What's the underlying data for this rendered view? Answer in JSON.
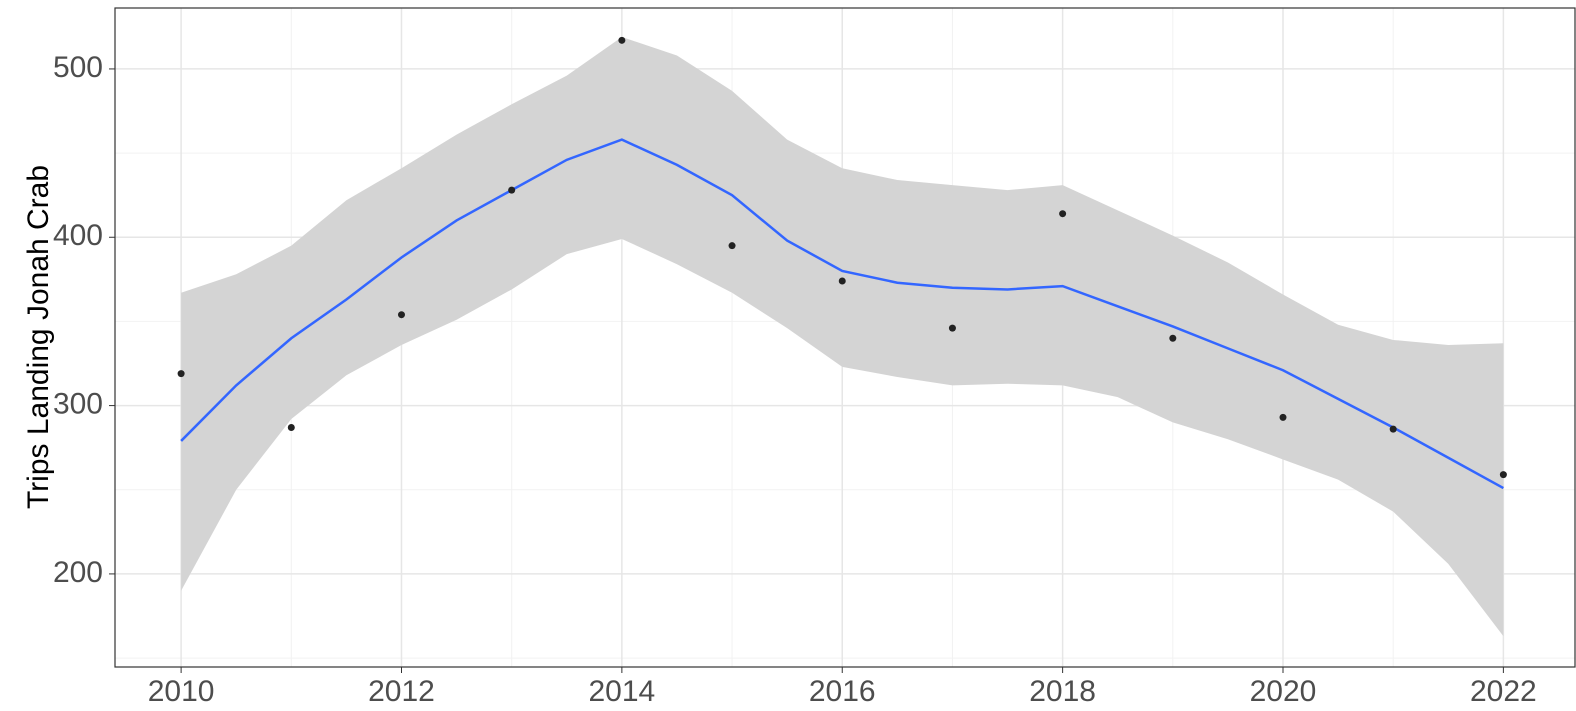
{
  "chart_data": {
    "type": "scatter",
    "y_label": "Trips Landing Jonah Crab",
    "x": [
      2010,
      2011,
      2012,
      2013,
      2014,
      2015,
      2016,
      2017,
      2018,
      2019,
      2020,
      2021,
      2022
    ],
    "values": [
      319,
      287,
      354,
      428,
      517,
      395,
      374,
      346,
      414,
      340,
      293,
      286,
      259
    ],
    "color": "#222222",
    "smooth": {
      "x": [
        2010,
        2010.5,
        2011,
        2011.5,
        2012,
        2012.5,
        2013,
        2013.5,
        2014,
        2014.5,
        2015,
        2015.5,
        2016,
        2016.5,
        2017,
        2017.5,
        2018,
        2018.5,
        2019,
        2019.5,
        2020,
        2020.5,
        2021,
        2021.5,
        2022
      ],
      "values": [
        279,
        312,
        340,
        363,
        388,
        410,
        428,
        446,
        458,
        443,
        425,
        398,
        380,
        373,
        370,
        369,
        371,
        359,
        347,
        334,
        321,
        304,
        287,
        269,
        251
      ],
      "lower": [
        190,
        250,
        292,
        318,
        336,
        351,
        369,
        390,
        399,
        384,
        367,
        346,
        323,
        317,
        312,
        313,
        312,
        305,
        290,
        280,
        268,
        256,
        237,
        206,
        163
      ],
      "upper": [
        367,
        378,
        395,
        422,
        441,
        461,
        479,
        496,
        519,
        508,
        487,
        458,
        441,
        434,
        431,
        428,
        431,
        416,
        401,
        385,
        366,
        348,
        339,
        336,
        337
      ],
      "color": "#3366ff",
      "fill": "#d4d4d4"
    },
    "xlim": [
      2009.4,
      2022.65
    ],
    "ylim": [
      144.7,
      536.2
    ],
    "xticks": [
      2010,
      2012,
      2014,
      2016,
      2018,
      2020,
      2022
    ],
    "yticks": [
      200,
      300,
      400,
      500
    ],
    "grid": true
  }
}
